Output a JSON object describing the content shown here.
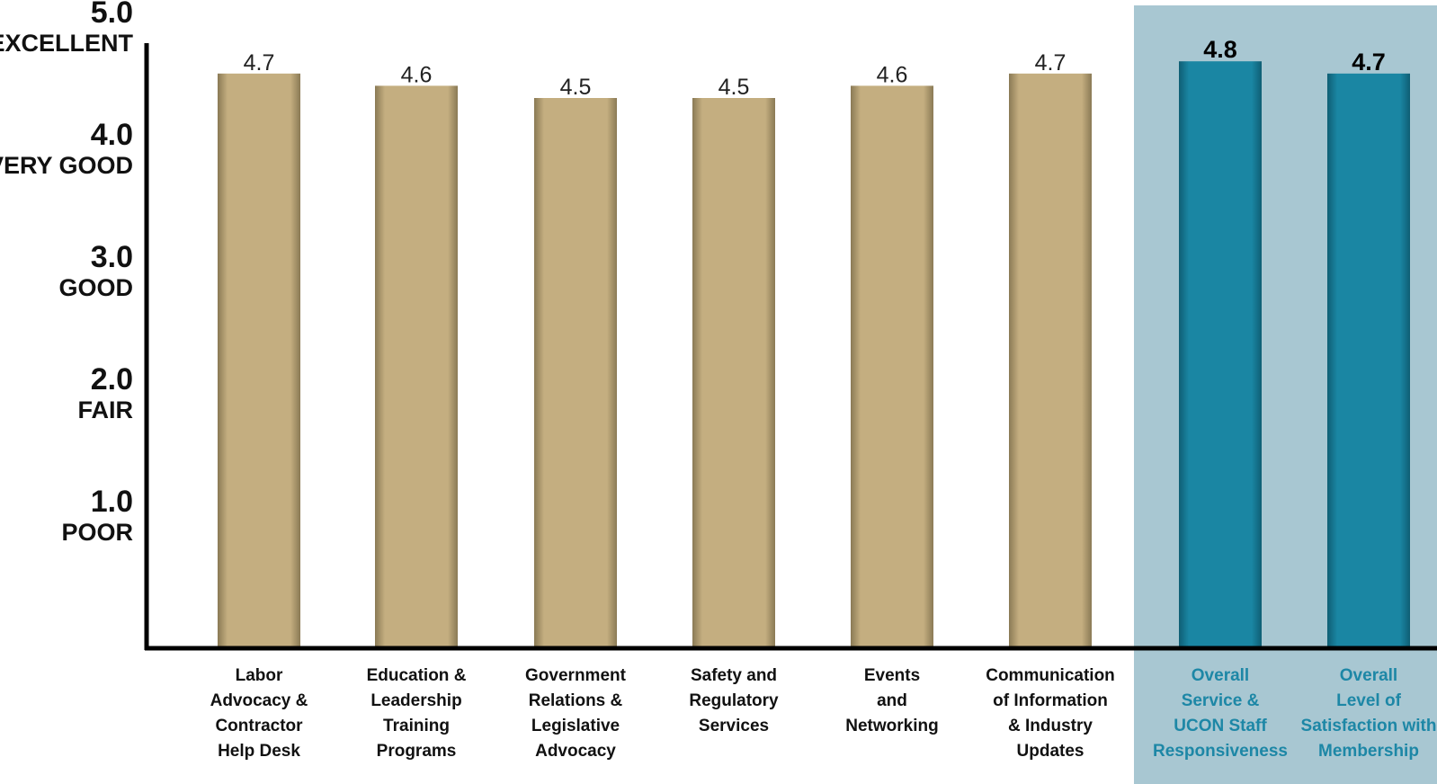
{
  "chart_data": {
    "type": "bar",
    "categories": [
      "Labor Advocacy & Contractor Help Desk",
      "Education & Leadership Training Programs",
      "Government Relations & Legislative Advocacy",
      "Safety and Regulatory Services",
      "Events and Networking",
      "Communication of Information & Industry Updates",
      "Overall Service & UCON Staff Responsiveness",
      "Overall Level of Satisfaction with Membership"
    ],
    "category_label_lines": [
      [
        "Labor",
        "Advocacy &",
        "Contractor",
        "Help Desk"
      ],
      [
        "Education &",
        "Leadership",
        "Training",
        "Programs"
      ],
      [
        "Government",
        "Relations &",
        "Legislative",
        "Advocacy"
      ],
      [
        "Safety and",
        "Regulatory",
        "Services"
      ],
      [
        "Events",
        "and",
        "Networking"
      ],
      [
        "Communication",
        "of Information",
        "& Industry",
        "Updates"
      ],
      [
        "Overall",
        "Service &",
        "UCON Staff",
        "Responsiveness"
      ],
      [
        "Overall",
        "Level of",
        "Satisfaction with",
        "Membership"
      ]
    ],
    "values": [
      4.7,
      4.6,
      4.5,
      4.5,
      4.6,
      4.7,
      4.8,
      4.7
    ],
    "value_labels": [
      "4.7",
      "4.6",
      "4.5",
      "4.5",
      "4.6",
      "4.7",
      "4.8",
      "4.7"
    ],
    "highlighted": [
      false,
      false,
      false,
      false,
      false,
      false,
      true,
      true
    ],
    "y_ticks": [
      {
        "value": 5.0,
        "label": "5.0",
        "word": "EXCELLENT"
      },
      {
        "value": 4.0,
        "label": "4.0",
        "word": "VERY GOOD"
      },
      {
        "value": 3.0,
        "label": "3.0",
        "word": "GOOD"
      },
      {
        "value": 2.0,
        "label": "2.0",
        "word": "FAIR"
      },
      {
        "value": 1.0,
        "label": "1.0",
        "word": "POOR"
      }
    ],
    "ylim": [
      0,
      5
    ],
    "grid": false,
    "legend": "none",
    "colors": {
      "bar": "#c4ae80",
      "bar_highlight": "#1a86a3",
      "highlight_panel": "#a8c7d2",
      "highlight_text": "#1d87a6",
      "axis": "#000000"
    }
  }
}
